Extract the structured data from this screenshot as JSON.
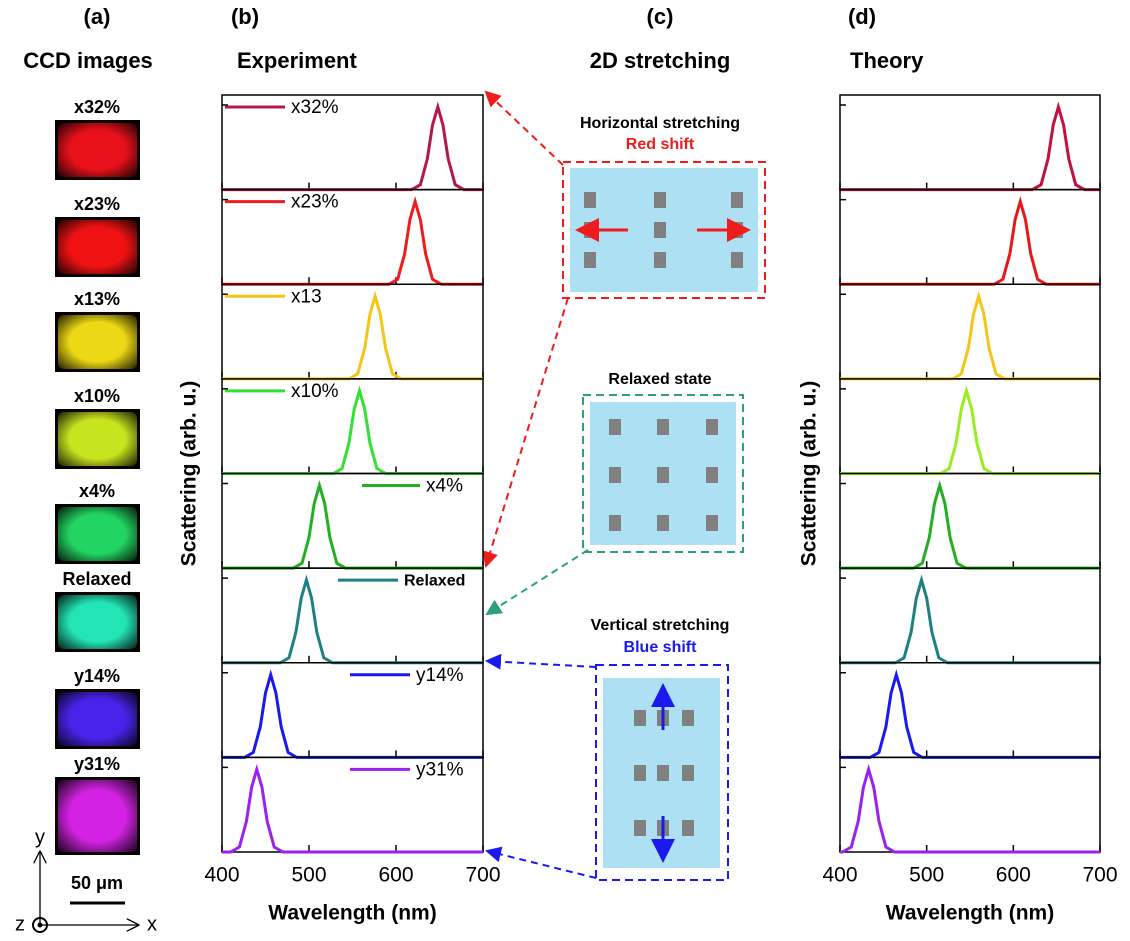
{
  "ccd_images": {
    "panel_label": "(a)",
    "title": "CCD images",
    "images": [
      {
        "label": "x32%",
        "color": "#e8101a"
      },
      {
        "label": "x23%",
        "color": "#f01212"
      },
      {
        "label": "x13%",
        "color": "#ecd814"
      },
      {
        "label": "x10%",
        "color": "#c8e41e"
      },
      {
        "label": "x4%",
        "color": "#22d462"
      },
      {
        "label": "Relaxed",
        "color": "#22e4b4"
      },
      {
        "label": "y14%",
        "color": "#4a22ea"
      },
      {
        "label": "y31%",
        "color": "#d422e4"
      }
    ],
    "scale_bar": "50 μm",
    "axes": {
      "y": "y",
      "x": "x",
      "z": "z"
    }
  },
  "stretching_diagram": {
    "panel_label": "(c)",
    "title": "2D stretching",
    "horizontal": {
      "title": "Horizontal stretching",
      "shift": "Red shift"
    },
    "relaxed": {
      "title": "Relaxed state"
    },
    "vertical": {
      "title": "Vertical stretching",
      "shift": "Blue shift"
    }
  },
  "chart_data": [
    {
      "type": "line",
      "panel_label": "(b)",
      "title": "Experiment",
      "x_label": "Wavelength (nm)",
      "y_label": "Scattering (arb. u.)",
      "xlim": [
        400,
        700
      ],
      "xticks": [
        400,
        500,
        600,
        700
      ],
      "ylim": [
        0,
        1.12
      ],
      "series": [
        {
          "name": "x32%",
          "color": "#b5174a",
          "x": [
            400,
            618,
            628,
            636,
            642,
            648,
            654,
            660,
            668,
            678,
            700
          ],
          "values": [
            0,
            0,
            0.06,
            0.37,
            0.78,
            1,
            0.78,
            0.37,
            0.06,
            0,
            0
          ]
        },
        {
          "name": "x23%",
          "color": "#ee1c1c",
          "x": [
            400,
            592,
            602,
            610,
            616,
            622,
            628,
            634,
            642,
            652,
            700
          ],
          "values": [
            0,
            0,
            0.06,
            0.37,
            0.78,
            1,
            0.78,
            0.37,
            0.06,
            0,
            0
          ]
        },
        {
          "name": "x13",
          "color": "#f5c518",
          "x": [
            400,
            546,
            556,
            564,
            570,
            576,
            582,
            588,
            596,
            606,
            700
          ],
          "values": [
            0,
            0,
            0.06,
            0.37,
            0.78,
            1,
            0.78,
            0.37,
            0.06,
            0,
            0
          ]
        },
        {
          "name": "x10%",
          "color": "#33e033",
          "x": [
            400,
            528,
            538,
            546,
            552,
            558,
            564,
            570,
            578,
            588,
            700
          ],
          "values": [
            0,
            0,
            0.06,
            0.37,
            0.78,
            1,
            0.78,
            0.37,
            0.06,
            0,
            0
          ]
        },
        {
          "name": "x4%",
          "color": "#22b022",
          "x": [
            400,
            482,
            492,
            500,
            506,
            512,
            518,
            524,
            532,
            542,
            700
          ],
          "values": [
            0,
            0,
            0.06,
            0.37,
            0.78,
            1,
            0.78,
            0.37,
            0.06,
            0,
            0
          ]
        },
        {
          "name": "Relaxed",
          "color": "#1e8080",
          "x": [
            400,
            467,
            477,
            485,
            491,
            497,
            503,
            509,
            517,
            527,
            700
          ],
          "values": [
            0,
            0,
            0.06,
            0.37,
            0.78,
            1,
            0.78,
            0.37,
            0.06,
            0,
            0
          ]
        },
        {
          "name": "y14%",
          "color": "#1a1aee",
          "x": [
            400,
            426,
            436,
            444,
            450,
            456,
            462,
            468,
            476,
            486,
            700
          ],
          "values": [
            0,
            0,
            0.06,
            0.37,
            0.78,
            1,
            0.78,
            0.37,
            0.06,
            0,
            0
          ]
        },
        {
          "name": "y31%",
          "color": "#9a22ee",
          "x": [
            400,
            410,
            420,
            428,
            434,
            440,
            446,
            452,
            460,
            470,
            700
          ],
          "values": [
            0,
            0,
            0.06,
            0.37,
            0.78,
            1,
            0.78,
            0.37,
            0.06,
            0,
            0
          ]
        }
      ]
    },
    {
      "type": "line",
      "panel_label": "(d)",
      "title": "Theory",
      "x_label": "Wavelength (nm)",
      "y_label": "Scattering (arb. u.)",
      "xlim": [
        400,
        700
      ],
      "xticks": [
        400,
        500,
        600,
        700
      ],
      "ylim": [
        0,
        1.12
      ],
      "series": [
        {
          "color": "#c4103f",
          "x": [
            400,
            622,
            632,
            640,
            646,
            652,
            658,
            664,
            672,
            682,
            700
          ],
          "values": [
            0,
            0,
            0.06,
            0.37,
            0.78,
            1,
            0.78,
            0.37,
            0.06,
            0,
            0
          ]
        },
        {
          "color": "#e81818",
          "x": [
            400,
            578,
            588,
            596,
            602,
            608,
            614,
            620,
            628,
            638,
            700
          ],
          "values": [
            0,
            0,
            0.06,
            0.37,
            0.78,
            1,
            0.78,
            0.37,
            0.06,
            0,
            0
          ]
        },
        {
          "color": "#f5c518",
          "x": [
            400,
            530,
            540,
            548,
            554,
            560,
            566,
            572,
            580,
            590,
            700
          ],
          "values": [
            0,
            0,
            0.06,
            0.37,
            0.78,
            1,
            0.78,
            0.37,
            0.06,
            0,
            0
          ]
        },
        {
          "color": "#99ee22",
          "x": [
            400,
            516,
            526,
            534,
            540,
            546,
            552,
            558,
            566,
            576,
            700
          ],
          "values": [
            0,
            0,
            0.06,
            0.37,
            0.78,
            1,
            0.78,
            0.37,
            0.06,
            0,
            0
          ]
        },
        {
          "color": "#22b022",
          "x": [
            400,
            485,
            495,
            503,
            509,
            515,
            521,
            527,
            535,
            545,
            700
          ],
          "values": [
            0,
            0,
            0.06,
            0.37,
            0.78,
            1,
            0.78,
            0.37,
            0.06,
            0,
            0
          ]
        },
        {
          "color": "#1e8080",
          "x": [
            400,
            464,
            474,
            482,
            488,
            494,
            500,
            506,
            514,
            524,
            700
          ],
          "values": [
            0,
            0,
            0.06,
            0.37,
            0.78,
            1,
            0.78,
            0.37,
            0.06,
            0,
            0
          ]
        },
        {
          "color": "#1a1aee",
          "x": [
            400,
            435,
            445,
            453,
            459,
            465,
            471,
            477,
            485,
            495,
            700
          ],
          "values": [
            0,
            0,
            0.06,
            0.37,
            0.78,
            1,
            0.78,
            0.37,
            0.06,
            0,
            0
          ]
        },
        {
          "color": "#9a22ee",
          "x": [
            400,
            403,
            413,
            421,
            427,
            433,
            439,
            445,
            453,
            463,
            700
          ],
          "values": [
            0,
            0,
            0.06,
            0.37,
            0.78,
            1,
            0.78,
            0.37,
            0.06,
            0,
            0
          ]
        }
      ]
    }
  ]
}
